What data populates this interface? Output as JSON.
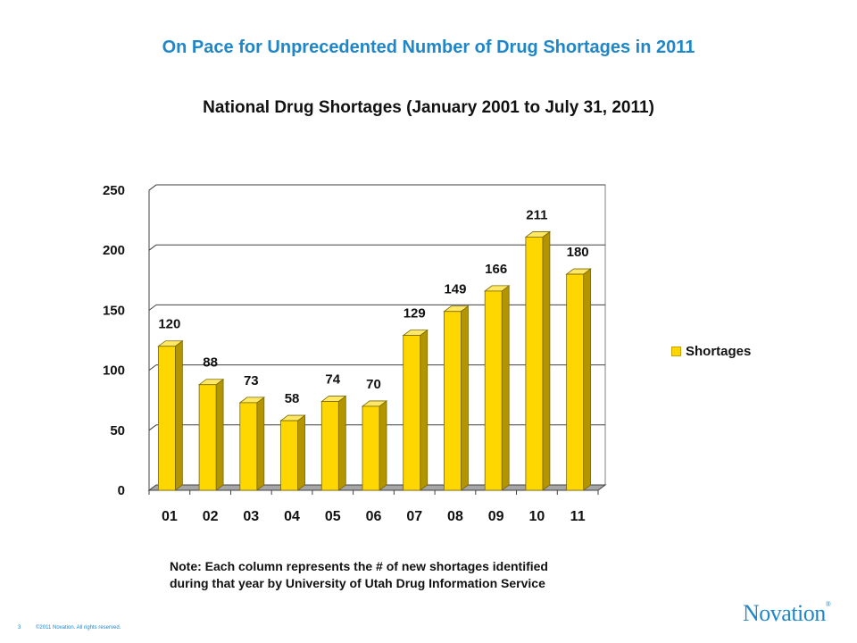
{
  "slide": {
    "title": "On Pace for Unprecedented Number of Drug Shortages in 2011",
    "note_line1": "Note: Each column represents the # of new shortages identified",
    "note_line2": "during that year by University of Utah Drug Information Service",
    "footer_page": "3",
    "footer_copyright": "©2011 Novation. All rights reserved.",
    "logo_text": "Novation",
    "logo_mark": "®"
  },
  "chart_data": {
    "type": "bar",
    "title": "National Drug Shortages (January 2001 to July 31, 2011)",
    "categories": [
      "01",
      "02",
      "03",
      "04",
      "05",
      "06",
      "07",
      "08",
      "09",
      "10",
      "11"
    ],
    "series": [
      {
        "name": "Shortages",
        "values": [
          120,
          88,
          73,
          58,
          74,
          70,
          129,
          149,
          166,
          211,
          180
        ],
        "color": "#ffd700"
      }
    ],
    "y_ticks": [
      0,
      50,
      100,
      150,
      200,
      250
    ],
    "ylim": [
      0,
      250
    ],
    "grid": true,
    "legend_position": "right",
    "three_d": true
  }
}
